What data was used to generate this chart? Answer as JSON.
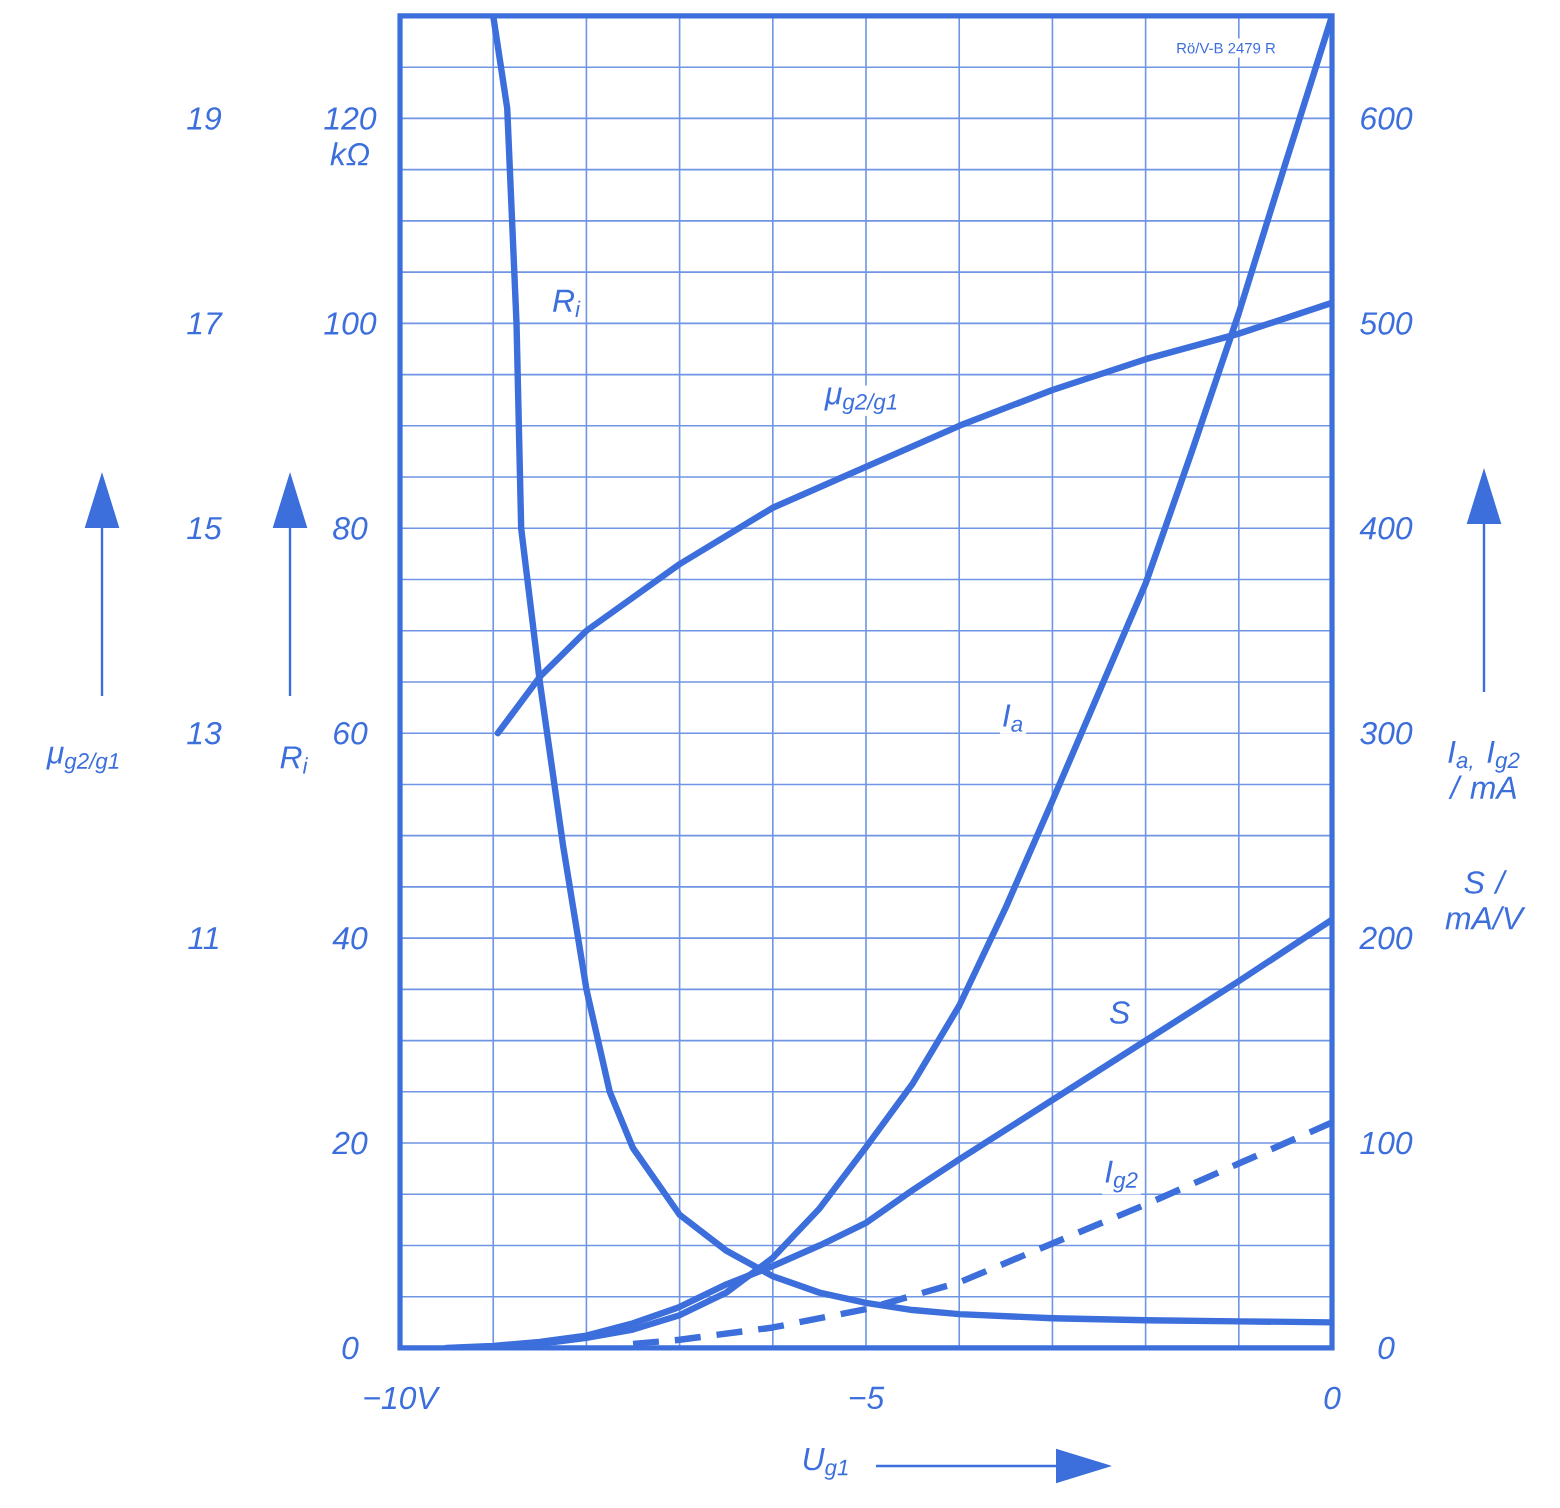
{
  "chart_data": {
    "type": "line",
    "xlabel": "U$_{g1}$",
    "ylabel": "R$_{i}$",
    "y2label": "I$_{a,}$ I$_{g2}$ / mA",
    "y3label": "μ$_{g2/g1}$",
    "annotations": [
      "S / mA/V",
      "Rö/V-B 2479 R"
    ],
    "xlim": [
      -10,
      0
    ],
    "xticks": [
      {
        "value": -10,
        "label": "−10V"
      },
      {
        "value": -9,
        "label": null
      },
      {
        "value": -8,
        "label": null
      },
      {
        "value": -7,
        "label": null
      },
      {
        "value": -6,
        "label": null
      },
      {
        "value": -5,
        "label": "−5"
      },
      {
        "value": -4,
        "label": null
      },
      {
        "value": -3,
        "label": null
      },
      {
        "value": -2,
        "label": null
      },
      {
        "value": -1,
        "label": null
      },
      0
    ],
    "ylim": [
      0,
      130
    ],
    "yticks": [
      0,
      {
        "value": 5,
        "label": null
      },
      {
        "value": 10,
        "label": null
      },
      {
        "value": 15,
        "label": null
      },
      20,
      {
        "value": 25,
        "label": null
      },
      {
        "value": 30,
        "label": null
      },
      {
        "value": 35,
        "label": null
      },
      40,
      {
        "value": 45,
        "label": null
      },
      {
        "value": 50,
        "label": null
      },
      {
        "value": 55,
        "label": null
      },
      60,
      {
        "value": 65,
        "label": null
      },
      {
        "value": 70,
        "label": null
      },
      {
        "value": 75,
        "label": null
      },
      80,
      {
        "value": 85,
        "label": null
      },
      {
        "value": 90,
        "label": null
      },
      {
        "value": 95,
        "label": null
      },
      100,
      {
        "value": 105,
        "label": null
      },
      {
        "value": 110,
        "label": null
      },
      {
        "value": 115,
        "label": null
      },
      {
        "value": 120,
        "label": "120 kΩ"
      },
      {
        "value": 125,
        "label": null
      }
    ],
    "y2lim": [
      0,
      650
    ],
    "y2ticks": [
      0,
      100,
      200,
      300,
      400,
      500,
      600
    ],
    "y3lim": [
      7,
      20
    ],
    "y3ticks": [
      11,
      13,
      15,
      17,
      19
    ],
    "grid": true,
    "line_style": "solid",
    "series": [
      {
        "name": "I$_{a}$",
        "axis": "y2",
        "color": "#3c6fdc",
        "x": [
          -9,
          -8.5,
          -8,
          -7.5,
          -7,
          -6.5,
          -6,
          -5.5,
          -5,
          -4.5,
          -4,
          -3.5,
          -3,
          -2.5,
          -2,
          -1.5,
          -1,
          -0.5,
          0
        ],
        "values": [
          0,
          2,
          5,
          9,
          16,
          27,
          44,
          68,
          98,
          129,
          167,
          215,
          267,
          320,
          373,
          438,
          505,
          578,
          650
        ]
      },
      {
        "name": "S",
        "axis": "y2",
        "color": "#3c6fdc",
        "x": [
          -9.5,
          -9,
          -8.5,
          -8,
          -7.5,
          -7,
          -6.5,
          -6,
          -5.5,
          -5,
          -4.5,
          -4,
          -3,
          -2,
          -1,
          0
        ],
        "values": [
          0,
          1,
          3,
          6,
          12,
          20,
          31,
          40,
          50,
          61,
          77,
          92,
          121,
          150,
          179,
          209
        ]
      },
      {
        "name": "I$_{g2}$",
        "axis": "y2",
        "color": "#3c6fdc",
        "line_style": "dashed",
        "x": [
          -7.5,
          -7,
          -6,
          -5,
          -4,
          -3,
          -2,
          -1,
          0
        ],
        "values": [
          2,
          4,
          10,
          19,
          32,
          51,
          70,
          90,
          110
        ]
      },
      {
        "name": "R$_{i}$",
        "axis": "y",
        "color": "#3c6fdc",
        "x": [
          -9,
          -8.85,
          -8.75,
          -8.7,
          -8.5,
          -8.25,
          -8,
          -7.75,
          -7.5,
          -7,
          -6.5,
          -6,
          -5.5,
          -5,
          -4.5,
          -4,
          -3,
          -2,
          -1,
          0
        ],
        "values": [
          130,
          121,
          100,
          80,
          65,
          49,
          35,
          25,
          19.5,
          13,
          9.5,
          7,
          5.4,
          4.4,
          3.7,
          3.3,
          2.9,
          2.7,
          2.6,
          2.5
        ]
      },
      {
        "name": "μ$_{g2/g1}$",
        "axis": "y3",
        "color": "#3c6fdc",
        "x": [
          -8.95,
          -8.5,
          -8,
          -7,
          -6,
          -5,
          -4,
          -3,
          -2,
          -1,
          0
        ],
        "values": [
          13.0,
          13.55,
          14.0,
          14.65,
          15.2,
          15.6,
          16.0,
          16.35,
          16.65,
          16.9,
          17.2
        ]
      }
    ]
  }
}
